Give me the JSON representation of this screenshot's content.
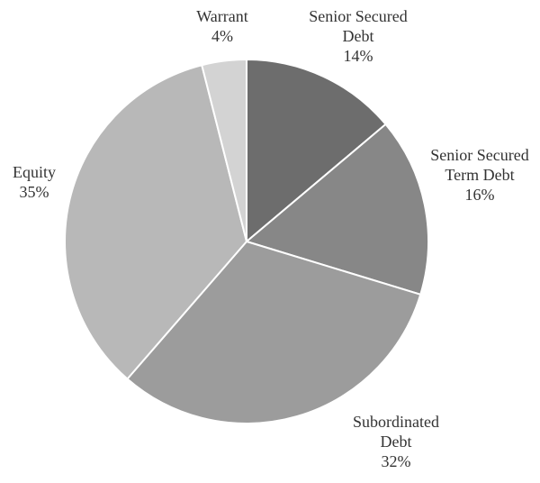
{
  "chart_data": {
    "type": "pie",
    "start_angle_deg": 0,
    "direction": "clockwise",
    "slices": [
      {
        "name": "senior-secured-debt",
        "label_lines": [
          "Senior Secured",
          "Debt",
          "14%"
        ],
        "value": 14,
        "color": "#6d6d6d"
      },
      {
        "name": "senior-secured-term-debt",
        "label_lines": [
          "Senior Secured",
          "Term Debt",
          "16%"
        ],
        "value": 16,
        "color": "#878787"
      },
      {
        "name": "subordinated-debt",
        "label_lines": [
          "Subordinated",
          "Debt",
          "32%"
        ],
        "value": 32,
        "color": "#9c9c9c"
      },
      {
        "name": "equity",
        "label_lines": [
          "Equity",
          "35%"
        ],
        "value": 35,
        "color": "#b8b8b8"
      },
      {
        "name": "warrant",
        "label_lines": [
          "Warrant",
          "4%"
        ],
        "value": 4,
        "color": "#d3d3d3"
      }
    ]
  }
}
